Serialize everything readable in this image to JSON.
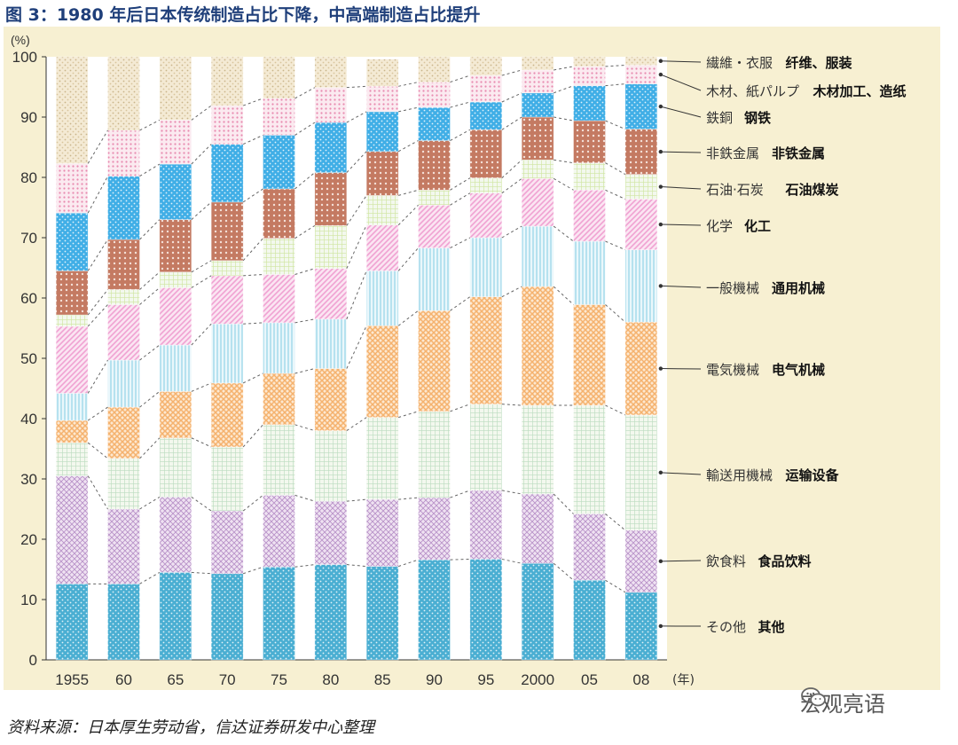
{
  "title": "图 3：1980 年后日本传统制造占比下降，中高端制造占比提升",
  "source": "资料来源：日本厚生劳动省，信达证券研发中心整理",
  "watermark": "宏观亮语",
  "chart_data": {
    "type": "bar",
    "stacked": true,
    "y_unit_label": "(%)",
    "x_unit_label": "(年)",
    "ylim": [
      0,
      100
    ],
    "yticks": [
      0,
      10,
      20,
      30,
      40,
      50,
      60,
      70,
      80,
      90,
      100
    ],
    "categories": [
      "1955",
      "60",
      "65",
      "70",
      "75",
      "80",
      "85",
      "90",
      "95",
      "2000",
      "05",
      "08"
    ],
    "series": [
      {
        "name": "その他",
        "name_cn": "其他",
        "color": "#4aaed2",
        "pattern": "dots",
        "values": [
          12.6,
          12.6,
          14.5,
          14.3,
          15.4,
          15.8,
          15.5,
          16.6,
          16.7,
          16.0,
          13.2,
          11.2
        ]
      },
      {
        "name": "飲食料",
        "name_cn": "食品饮料",
        "color": "#cfb6dc",
        "pattern": "checker",
        "values": [
          17.9,
          12.4,
          12.5,
          10.4,
          11.9,
          10.5,
          11.1,
          10.3,
          11.4,
          11.5,
          11.0,
          10.3
        ]
      },
      {
        "name": "輸送用機械",
        "name_cn": "运输设备",
        "color": "#bcdcc0",
        "pattern": "grid",
        "values": [
          5.5,
          8.4,
          9.8,
          10.6,
          11.7,
          11.7,
          13.6,
          14.3,
          14.3,
          14.7,
          18.0,
          19.1
        ]
      },
      {
        "name": "電気機械",
        "name_cn": "电气机械",
        "color": "#f5b26e",
        "pattern": "cross",
        "values": [
          3.7,
          8.5,
          7.7,
          10.6,
          8.5,
          10.3,
          15.2,
          16.7,
          17.8,
          19.7,
          16.7,
          15.4
        ]
      },
      {
        "name": "一般機械",
        "name_cn": "通用机械",
        "color": "#a9dcec",
        "pattern": "vlines",
        "values": [
          4.5,
          7.8,
          7.7,
          9.8,
          8.4,
          8.2,
          9.1,
          10.4,
          9.8,
          10.0,
          10.5,
          12.0
        ]
      },
      {
        "name": "化学",
        "name_cn": "化工",
        "color": "#f0a2d2",
        "pattern": "diag",
        "values": [
          11.1,
          9.2,
          9.5,
          8.0,
          8.0,
          8.4,
          7.6,
          7.1,
          7.4,
          7.9,
          8.5,
          8.4
        ]
      },
      {
        "name": "石油·石炭",
        "name_cn": "石油煤炭",
        "color": "#cfe6a0",
        "pattern": "grid",
        "values": [
          1.9,
          2.5,
          2.6,
          2.5,
          6.0,
          7.1,
          4.9,
          2.5,
          2.5,
          3.1,
          4.5,
          4.1
        ]
      },
      {
        "name": "非鉄金属",
        "name_cn": "非铁金属",
        "color": "#c47a62",
        "pattern": "dotsLight",
        "values": [
          7.3,
          8.3,
          8.7,
          9.7,
          8.2,
          8.8,
          7.3,
          8.2,
          8.0,
          7.1,
          7.0,
          7.5
        ]
      },
      {
        "name": "鉄銅",
        "name_cn": "钢铁",
        "color": "#40aee6",
        "pattern": "dots",
        "values": [
          9.6,
          10.5,
          9.2,
          9.6,
          8.9,
          8.3,
          6.6,
          5.5,
          4.6,
          4.0,
          5.8,
          7.5
        ]
      },
      {
        "name": "木材、紙パルプ",
        "name_cn": "木材加工、造纸",
        "color": "#f4c8d6",
        "pattern": "dotsPink",
        "values": [
          8.2,
          7.6,
          7.3,
          6.4,
          6.1,
          5.8,
          4.2,
          4.2,
          4.4,
          3.8,
          3.2,
          3.1
        ]
      },
      {
        "name": "繊維・衣服",
        "name_cn": "纤维、服装",
        "color": "#f4ead4",
        "pattern": "dotsBeige",
        "values": [
          17.7,
          12.2,
          10.5,
          8.1,
          6.9,
          5.1,
          4.5,
          4.2,
          3.1,
          2.2,
          1.6,
          1.4
        ]
      }
    ],
    "legend_order_top_to_bottom": [
      10,
      9,
      8,
      7,
      6,
      5,
      4,
      3,
      2,
      1,
      0
    ]
  }
}
